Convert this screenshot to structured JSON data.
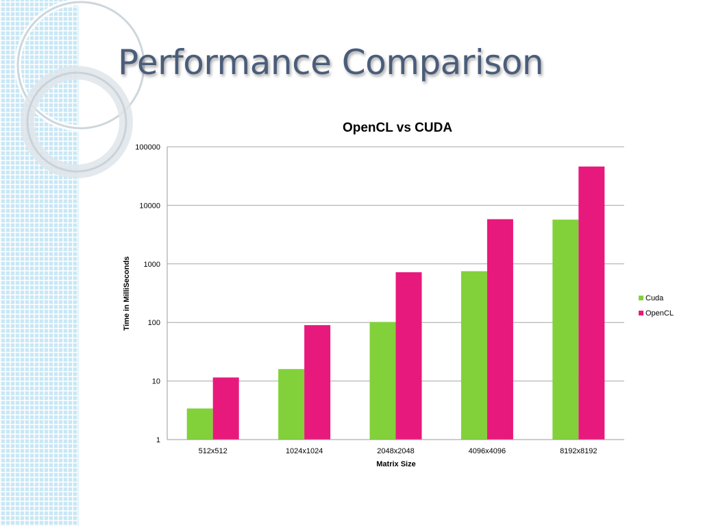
{
  "slide": {
    "title": "Performance Comparison"
  },
  "chart_data": {
    "type": "bar",
    "title": "OpenCL vs CUDA",
    "xlabel": "Matrix Size",
    "ylabel": "Time in MilliSeconds",
    "yscale": "log",
    "ylim": [
      1,
      100000
    ],
    "yticks": [
      "1",
      "10",
      "100",
      "1000",
      "10000",
      "100000"
    ],
    "grid": true,
    "legend_position": "right",
    "categories": [
      "512x512",
      "1024x1024",
      "2048x2048",
      "4096x4096",
      "8192x8192"
    ],
    "series": [
      {
        "name": "Cuda",
        "color": "#82d13a",
        "values": [
          3.4,
          16,
          102,
          750,
          5700
        ]
      },
      {
        "name": "OpenCL",
        "color": "#e8197c",
        "values": [
          11.5,
          90,
          720,
          5800,
          46000
        ]
      }
    ]
  }
}
